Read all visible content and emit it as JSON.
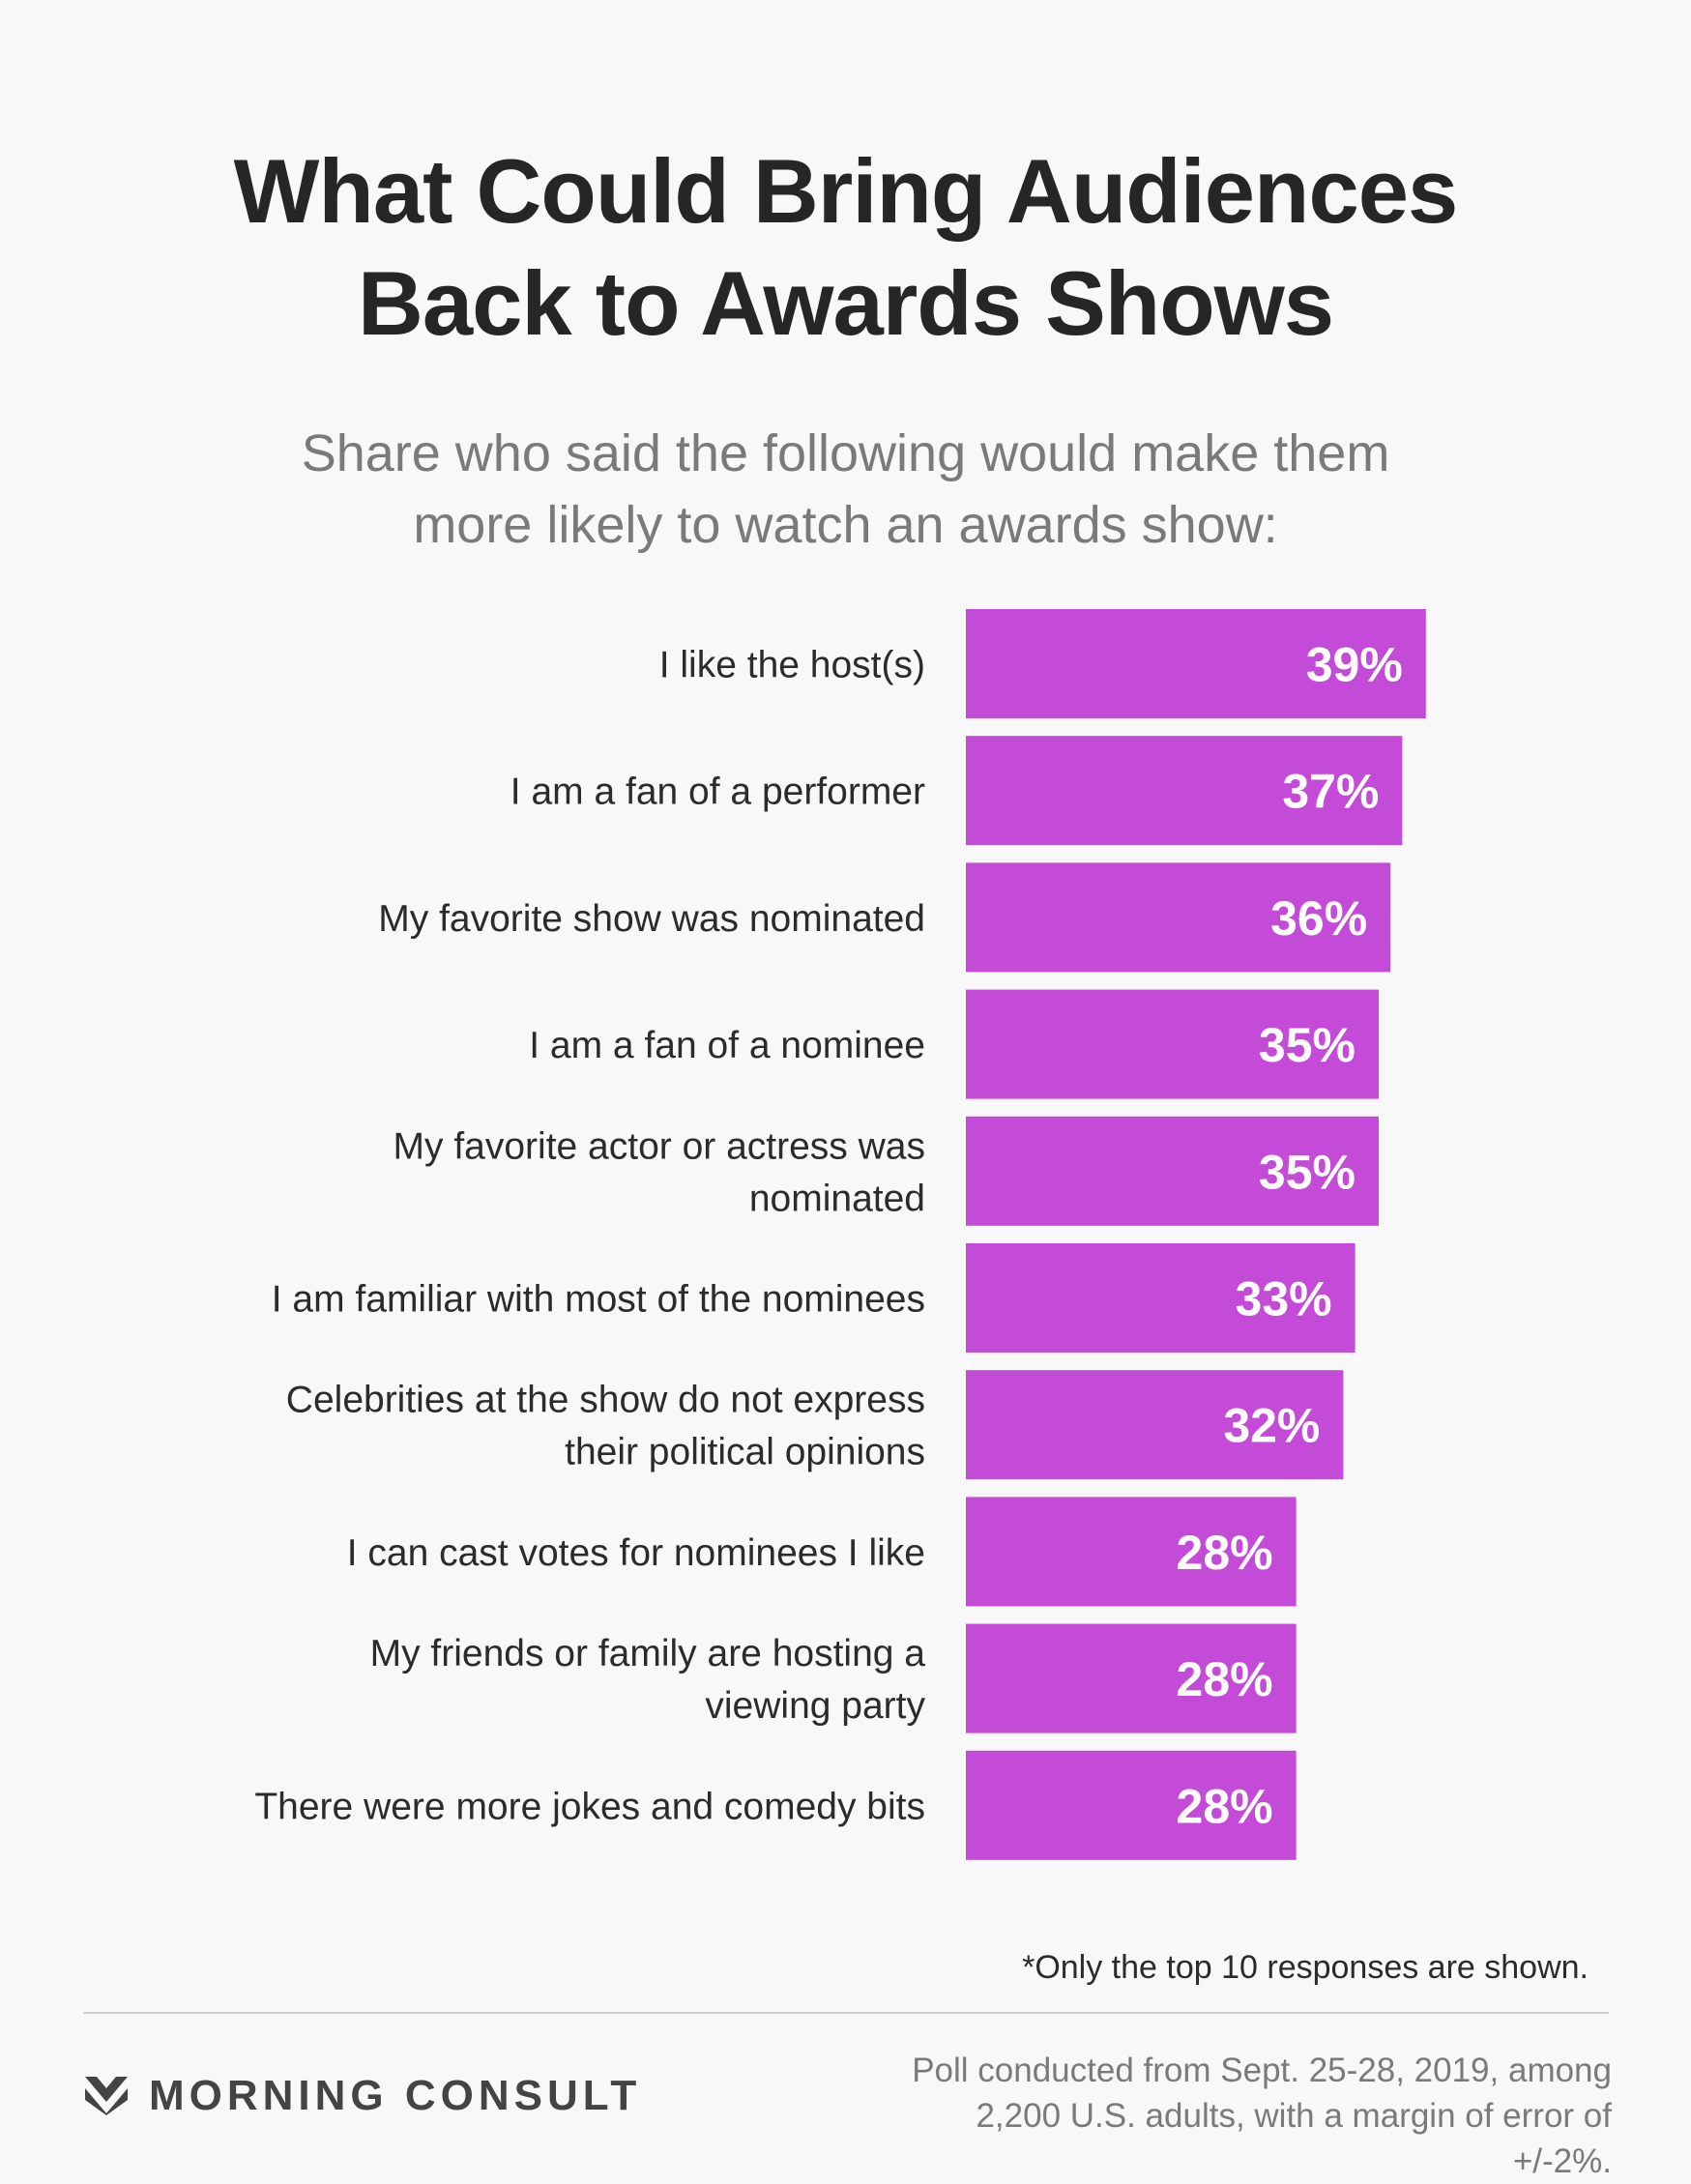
{
  "header": {
    "title_line1": "What Could Bring Audiences",
    "title_line2": "Back to Awards Shows",
    "subtitle_line1": "Share who said the following would make them",
    "subtitle_line2": "more likely to watch an awards show:"
  },
  "chart_data": {
    "type": "bar",
    "orientation": "horizontal",
    "title": "What Could Bring Audiences Back to Awards Shows",
    "subtitle": "Share who said the following would make them more likely to watch an awards show:",
    "categories": [
      [
        "I like the host(s)"
      ],
      [
        "I am a fan of a performer"
      ],
      [
        "My favorite show was nominated"
      ],
      [
        "I am a fan of a nominee"
      ],
      [
        "My favorite actor or actress was",
        "nominated"
      ],
      [
        "I am familiar with most of the nominees"
      ],
      [
        "Celebrities at the show do not express",
        "their political opinions"
      ],
      [
        "I can cast votes for nominees I like"
      ],
      [
        "My friends or family are hosting a",
        "viewing party"
      ],
      [
        "There were more jokes and comedy bits"
      ]
    ],
    "values": [
      39,
      37,
      36,
      35,
      35,
      33,
      32,
      28,
      28,
      28
    ],
    "value_labels": [
      "39%",
      "37%",
      "36%",
      "35%",
      "35%",
      "33%",
      "32%",
      "28%",
      "28%",
      "28%"
    ],
    "unit": "%",
    "bar_color": "#c44bd8",
    "label_color": "#ffffff",
    "grid": false,
    "legend": "none"
  },
  "footer": {
    "note": "*Only the top 10 responses are shown.",
    "brand": "MORNING CONSULT",
    "brand_icon": "morning-consult-chevron-logo",
    "source_line1": "Poll conducted from Sept. 25-28, 2019, among",
    "source_line2": "2,200 U.S. adults, with a margin of error of +/-2%."
  }
}
